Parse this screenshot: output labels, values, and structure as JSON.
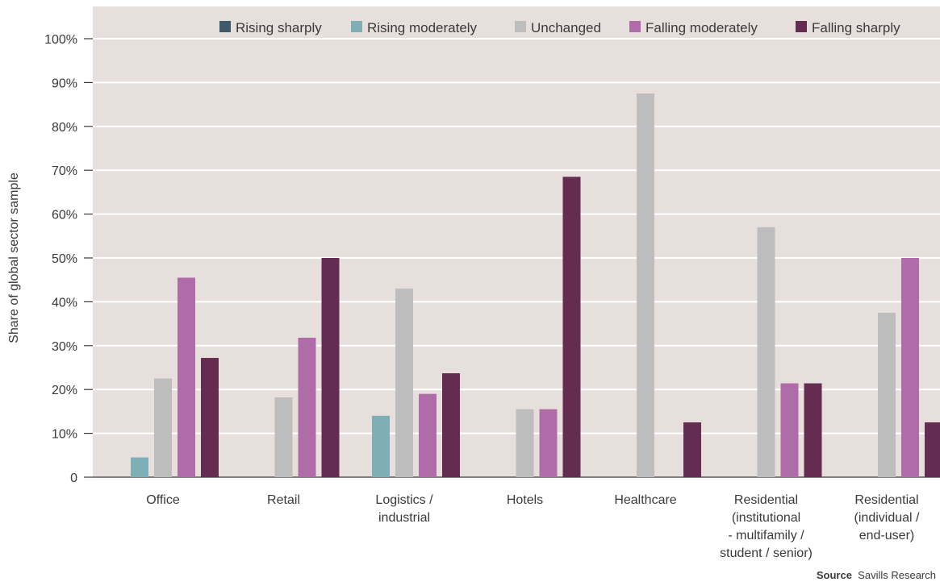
{
  "chart_data": {
    "type": "bar",
    "ylabel": "Share of global sector sample",
    "xlabel": "",
    "ylim": [
      0,
      100
    ],
    "yticks": [
      "0",
      "10%",
      "20%",
      "30%",
      "40%",
      "50%",
      "60%",
      "70%",
      "80%",
      "90%",
      "100%"
    ],
    "grid": true,
    "legend_position": "top-right",
    "categories": [
      [
        "Office"
      ],
      [
        "Retail"
      ],
      [
        "Logistics /",
        "industrial"
      ],
      [
        "Hotels"
      ],
      [
        "Healthcare"
      ],
      [
        "Residential",
        "(institutional",
        "- multifamily /",
        "student / senior)"
      ],
      [
        "Residential",
        "(individual /",
        "end-user)"
      ]
    ],
    "series": [
      {
        "name": "Rising sharply",
        "color": "#3d5a6c",
        "values": [
          0,
          0,
          0,
          0,
          0,
          0,
          0
        ]
      },
      {
        "name": "Rising moderately",
        "color": "#7eaeb6",
        "values": [
          4.5,
          0,
          14,
          0,
          0,
          0,
          0
        ]
      },
      {
        "name": "Unchanged",
        "color": "#bdbdbd",
        "values": [
          22.5,
          18.2,
          43,
          15.5,
          87.5,
          57,
          37.5
        ]
      },
      {
        "name": "Falling moderately",
        "color": "#b06ca8",
        "values": [
          45.5,
          31.8,
          19,
          15.5,
          0,
          21.4,
          50
        ]
      },
      {
        "name": "Falling sharply",
        "color": "#652c52",
        "values": [
          27.2,
          50,
          23.7,
          68.5,
          12.5,
          21.4,
          12.5
        ]
      }
    ]
  },
  "colors": {
    "plot_background": "#e7dfdb",
    "gridline": "#ffffff"
  },
  "source": {
    "label": "Source",
    "text": "Savills Research"
  }
}
